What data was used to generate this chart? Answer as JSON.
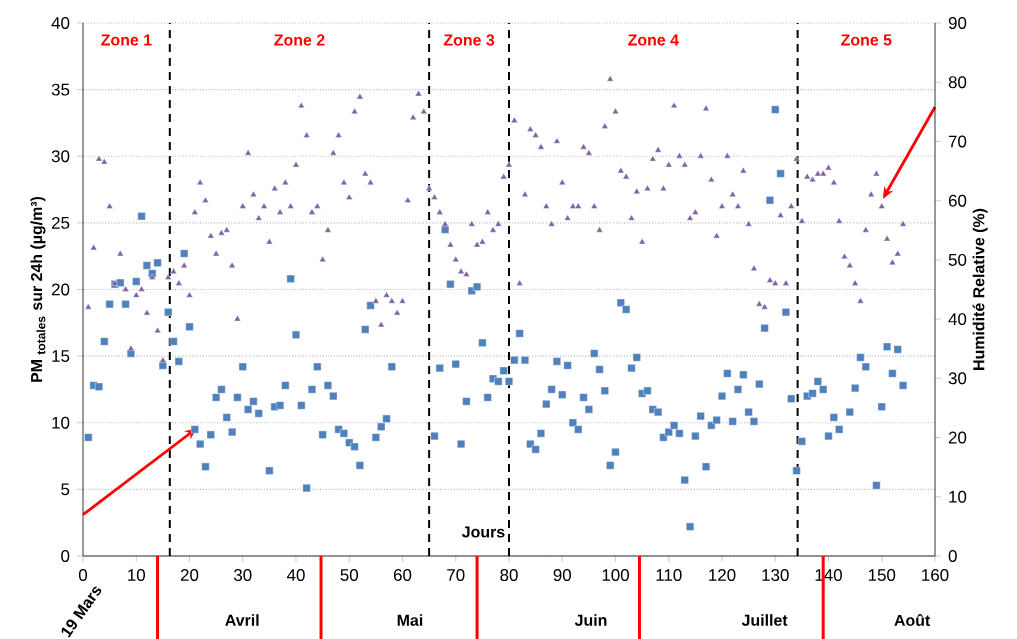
{
  "chart_data": {
    "type": "scatter",
    "xlabel": "Jours",
    "ylabel": "PM $_{totales}$ sur 24h (µg/m³)",
    "y2label": "Humidité Relative (%)",
    "xlim": [
      0,
      160
    ],
    "xticks": [
      0,
      10,
      20,
      30,
      40,
      50,
      60,
      70,
      80,
      90,
      100,
      110,
      120,
      130,
      140,
      150,
      160
    ],
    "ylim": [
      0,
      40
    ],
    "yticks": [
      0,
      5,
      10,
      15,
      20,
      25,
      30,
      35,
      40
    ],
    "y2lim": [
      0,
      90
    ],
    "y2ticks": [
      0,
      10,
      20,
      30,
      40,
      50,
      60,
      70,
      80,
      90
    ],
    "grid": "y",
    "series": [
      {
        "color": "#4f81bd",
        "marker": "square",
        "x": [
          1,
          2,
          3,
          4,
          5,
          6,
          7,
          8,
          9,
          10,
          11,
          12,
          13,
          14,
          15,
          16,
          17,
          18,
          19,
          20,
          21,
          22,
          23,
          24,
          25,
          26,
          27,
          28,
          29,
          30,
          31,
          32,
          33,
          35,
          36,
          37,
          38,
          39,
          40,
          41,
          42,
          43,
          44,
          45,
          46,
          47,
          48,
          49,
          50,
          51,
          52,
          53,
          54,
          55,
          56,
          57,
          58,
          66,
          67,
          68,
          69,
          70,
          71,
          72,
          73,
          74,
          75,
          76,
          77,
          78,
          79,
          80,
          81,
          82,
          83,
          84,
          85,
          86,
          87,
          88,
          89,
          90,
          91,
          92,
          93,
          94,
          95,
          96,
          97,
          98,
          99,
          100,
          101,
          102,
          103,
          104,
          105,
          106,
          107,
          108,
          109,
          110,
          111,
          112,
          113,
          114,
          115,
          116,
          117,
          118,
          119,
          120,
          121,
          122,
          123,
          124,
          125,
          126,
          127,
          128,
          129,
          130,
          131,
          132,
          133,
          134,
          135,
          136,
          137,
          138,
          139,
          140,
          141,
          142,
          144,
          145,
          146,
          147,
          149,
          150,
          151,
          152,
          153,
          154
        ],
        "values": [
          8.9,
          12.8,
          12.7,
          16.1,
          18.9,
          20.4,
          20.5,
          18.9,
          15.2,
          20.6,
          25.5,
          21.8,
          21.2,
          22.0,
          14.3,
          18.3,
          16.1,
          14.6,
          22.7,
          17.2,
          9.5,
          8.4,
          6.7,
          9.1,
          11.9,
          12.5,
          10.4,
          9.3,
          11.9,
          14.2,
          11.0,
          11.6,
          10.7,
          6.4,
          11.2,
          11.3,
          12.8,
          20.8,
          16.6,
          11.3,
          5.1,
          12.5,
          14.2,
          9.1,
          12.8,
          12.0,
          9.5,
          9.2,
          8.5,
          8.2,
          6.8,
          17.0,
          18.8,
          8.9,
          9.7,
          10.3,
          14.2,
          9.0,
          14.1,
          24.5,
          20.4,
          14.4,
          8.4,
          11.6,
          19.9,
          20.2,
          16.0,
          11.9,
          13.3,
          13.1,
          13.9,
          13.1,
          14.7,
          16.7,
          14.7,
          8.4,
          8.0,
          9.2,
          11.4,
          12.5,
          14.6,
          12.1,
          14.3,
          10.0,
          9.5,
          11.9,
          11.0,
          15.2,
          14.0,
          12.4,
          6.8,
          7.8,
          19.0,
          18.5,
          14.1,
          14.9,
          12.2,
          12.4,
          11.0,
          10.8,
          8.9,
          9.3,
          9.8,
          9.2,
          5.7,
          2.2,
          9.0,
          10.5,
          6.7,
          9.8,
          10.2,
          12.0,
          13.7,
          10.1,
          12.5,
          13.6,
          10.8,
          10.1,
          12.9,
          17.1,
          26.7,
          33.5,
          28.7,
          18.3,
          11.8,
          6.4,
          8.6,
          12.0,
          12.2,
          13.1,
          12.5,
          9.0,
          10.4,
          9.5,
          10.8,
          12.6,
          14.9,
          14.2,
          5.3,
          11.2,
          15.7,
          13.7,
          15.5,
          12.8
        ]
      },
      {
        "color": "#8064a2",
        "marker": "triangle",
        "axis": "y2",
        "x": [
          1,
          2,
          3,
          4,
          5,
          6,
          7,
          8,
          9,
          10,
          11,
          12,
          13,
          14,
          15,
          16,
          17,
          18,
          19,
          20,
          21,
          22,
          23,
          24,
          25,
          26,
          27,
          28,
          29,
          30,
          31,
          32,
          33,
          34,
          35,
          36,
          37,
          38,
          39,
          40,
          41,
          42,
          43,
          44,
          45,
          46,
          47,
          48,
          49,
          50,
          51,
          52,
          53,
          54,
          55,
          56,
          57,
          58,
          59,
          60,
          61,
          62,
          63,
          64,
          65,
          66,
          67,
          68,
          69,
          70,
          71,
          72,
          73,
          74,
          75,
          76,
          77,
          78,
          79,
          80,
          81,
          82,
          83,
          84,
          85,
          86,
          87,
          88,
          89,
          90,
          91,
          92,
          93,
          94,
          95,
          96,
          97,
          98,
          99,
          100,
          101,
          102,
          103,
          104,
          105,
          106,
          107,
          108,
          109,
          110,
          111,
          112,
          113,
          114,
          115,
          116,
          117,
          118,
          119,
          120,
          121,
          122,
          123,
          124,
          125,
          126,
          127,
          128,
          129,
          130,
          131,
          132,
          133,
          134,
          135,
          136,
          137,
          138,
          139,
          140,
          141,
          142,
          143,
          144,
          145,
          146,
          147,
          148,
          149,
          150,
          151,
          152,
          153,
          154
        ],
        "values": [
          42,
          52,
          67,
          66.5,
          59,
          46,
          51,
          45,
          35,
          44,
          45,
          41,
          47,
          38,
          33,
          47,
          48,
          46,
          49,
          44,
          58,
          63,
          60,
          54,
          51,
          54.5,
          55,
          49,
          40,
          59,
          68,
          61,
          57,
          59,
          53,
          62,
          58,
          63,
          59,
          66,
          76,
          71,
          58,
          59,
          50,
          55,
          68,
          71,
          63,
          60.5,
          75,
          77.5,
          64.5,
          63,
          43,
          39,
          44,
          43,
          41,
          43,
          60,
          74,
          78,
          75,
          62,
          60.5,
          58,
          56,
          52.5,
          50,
          48,
          47.5,
          56,
          52.5,
          53,
          58,
          55,
          56,
          64,
          66,
          73.5,
          46,
          61,
          72,
          71,
          69,
          59,
          56,
          70,
          63,
          57,
          59,
          59,
          69,
          68,
          59,
          55,
          72.5,
          80.5,
          75,
          65,
          64,
          57,
          61.5,
          53,
          62,
          67,
          68.5,
          62,
          66,
          76,
          67.5,
          66,
          57,
          58,
          67.5,
          75.5,
          63.5,
          54,
          59,
          67.5,
          61,
          59,
          65,
          56,
          48.5,
          42.5,
          42,
          46.5,
          46,
          57.5,
          46,
          59,
          67,
          56.5,
          64,
          63.5,
          64.5,
          64.5,
          65.5,
          63,
          56.5,
          50.5,
          49,
          46,
          43,
          55,
          61,
          64.5,
          59,
          53.5,
          49.5,
          51,
          56
        ]
      }
    ],
    "ref_lines": [
      {
        "axis": "x",
        "value": 16.3,
        "color": "#000000",
        "line_style": "dashed"
      },
      {
        "axis": "x",
        "value": 65,
        "color": "#000000",
        "line_style": "dashed"
      },
      {
        "axis": "x",
        "value": 80,
        "color": "#000000",
        "line_style": "dashed"
      },
      {
        "axis": "x",
        "value": 134.2,
        "color": "#000000",
        "line_style": "dashed"
      }
    ],
    "annotations": [
      "Zone 1",
      "Zone 2",
      "Zone 3",
      "Zone 4",
      "Zone 5",
      "19 Mars",
      "Avril",
      "Mai",
      "Juin",
      "Juillet",
      "Août"
    ]
  }
}
